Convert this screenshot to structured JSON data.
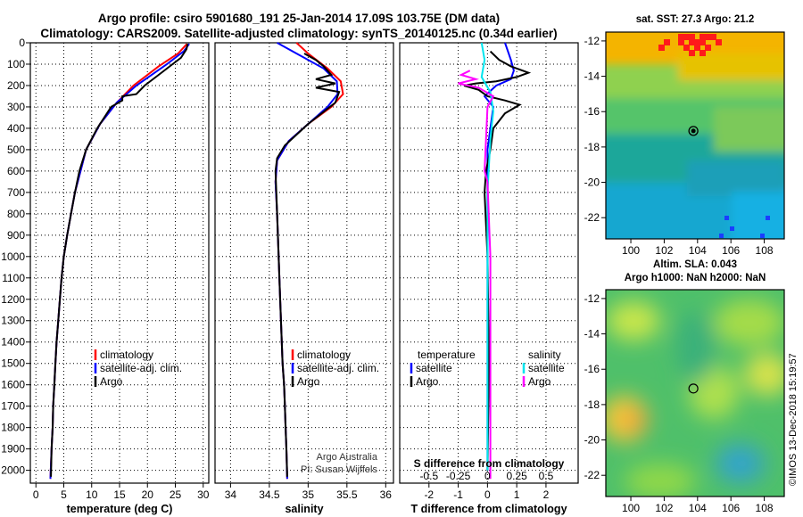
{
  "header": {
    "title_line1": "Argo profile: csiro 5901680_191 25-Jan-2014 17.09S 103.75E (DM data)",
    "title_line2": "Climatology: CARS2009. Satellite-adjusted climatology: synTS_20140125.nc (0.34d earlier)"
  },
  "colors": {
    "climatology": "#ff0000",
    "satellite": "#0000ff",
    "argo": "#000000",
    "sat_salinity": "#00e5ee",
    "argo_salinity": "#ff00ff"
  },
  "depth_axis": {
    "ticks": [
      0,
      100,
      200,
      300,
      400,
      500,
      600,
      700,
      800,
      900,
      1000,
      1100,
      1200,
      1300,
      1400,
      1500,
      1600,
      1700,
      1800,
      1900,
      2000
    ]
  },
  "chart_data": [
    {
      "type": "line",
      "xlabel": "temperature (deg C)",
      "xlim": [
        -1,
        31
      ],
      "ylim": [
        2060,
        0
      ],
      "xticks": [
        0,
        5,
        10,
        15,
        20,
        25,
        30
      ],
      "legend": {
        "items": [
          "climatology",
          "satellite-adj. clim.",
          "Argo"
        ]
      },
      "series": [
        {
          "name": "climatology",
          "color": "#ff0000",
          "x": [
            27.1,
            25.5,
            22.0,
            17.5,
            14.5,
            11.5,
            9.0,
            7.8,
            7.0,
            6.3,
            5.6,
            5.0,
            4.6,
            4.3,
            4.0,
            3.7,
            3.5,
            3.3,
            3.1,
            3.0,
            2.8,
            2.6
          ],
          "y": [
            5,
            50,
            110,
            200,
            280,
            380,
            500,
            620,
            700,
            800,
            900,
            1000,
            1100,
            1200,
            1300,
            1400,
            1500,
            1600,
            1700,
            1800,
            1900,
            2040
          ]
        },
        {
          "name": "satellite-adj. clim.",
          "color": "#0000ff",
          "x": [
            27.5,
            26.5,
            23.5,
            18.0,
            14.5,
            11.5,
            9.0,
            7.8,
            7.0,
            6.3,
            5.6,
            5.0,
            4.6,
            4.3,
            4.0,
            3.7,
            3.5,
            3.3,
            3.1,
            3.0,
            2.8,
            2.6
          ],
          "y": [
            5,
            40,
            100,
            200,
            280,
            380,
            500,
            620,
            700,
            800,
            900,
            1000,
            1100,
            1200,
            1300,
            1400,
            1500,
            1600,
            1700,
            1800,
            1900,
            2040
          ]
        },
        {
          "name": "Argo",
          "color": "#000000",
          "x": [
            27.2,
            27.0,
            26.0,
            24.5,
            22.0,
            19.5,
            18.0,
            15.5,
            15.5,
            13.5,
            11.0,
            9.0,
            7.8,
            7.0,
            6.3,
            5.6,
            5.0,
            4.6,
            4.3,
            4.0,
            3.7,
            3.5,
            3.3,
            3.1,
            3.0,
            2.8,
            2.7
          ],
          "y": [
            5,
            30,
            70,
            100,
            150,
            200,
            240,
            250,
            270,
            300,
            400,
            500,
            600,
            700,
            800,
            900,
            1000,
            1100,
            1200,
            1300,
            1400,
            1500,
            1600,
            1700,
            1800,
            1900,
            2030
          ]
        }
      ]
    },
    {
      "type": "line",
      "xlabel": "salinity",
      "xlim": [
        33.8,
        36.1
      ],
      "ylim": [
        2060,
        0
      ],
      "xticks": [
        34,
        34.5,
        35,
        35.5,
        36
      ],
      "legend": {
        "items": [
          "climatology",
          "satellite-adj. clim.",
          "Argo"
        ]
      },
      "annotation": [
        "Argo Australia",
        "PI: Susan Wijffels"
      ],
      "series": [
        {
          "name": "climatology",
          "color": "#ff0000",
          "x": [
            34.85,
            35.0,
            35.25,
            35.42,
            35.45,
            35.3,
            35.0,
            34.75,
            34.6,
            34.58,
            34.6,
            34.62,
            34.64,
            34.66,
            34.67,
            34.69,
            34.7,
            34.71,
            34.72,
            34.73
          ],
          "y": [
            0,
            50,
            120,
            180,
            240,
            300,
            380,
            460,
            550,
            650,
            800,
            1000,
            1200,
            1400,
            1500,
            1600,
            1700,
            1800,
            1900,
            2040
          ]
        },
        {
          "name": "satellite-adj. clim.",
          "color": "#0000ff",
          "x": [
            34.6,
            34.85,
            35.2,
            35.37,
            35.38,
            35.25,
            35.0,
            34.75,
            34.6,
            34.58,
            34.6,
            34.62,
            34.64,
            34.66,
            34.67,
            34.69,
            34.7,
            34.71,
            34.72,
            34.73
          ],
          "y": [
            0,
            50,
            120,
            180,
            240,
            300,
            380,
            460,
            550,
            650,
            800,
            1000,
            1200,
            1400,
            1500,
            1600,
            1700,
            1800,
            1900,
            2040
          ]
        },
        {
          "name": "Argo",
          "color": "#000000",
          "x": [
            34.95,
            35.1,
            35.2,
            35.3,
            35.1,
            35.35,
            35.1,
            35.4,
            35.35,
            35.0,
            34.85,
            34.7,
            34.6,
            34.58,
            34.6,
            34.62,
            34.64,
            34.66,
            34.67,
            34.69,
            34.7,
            34.71,
            34.72,
            34.73
          ],
          "y": [
            50,
            80,
            110,
            150,
            170,
            190,
            210,
            230,
            280,
            380,
            430,
            480,
            540,
            600,
            800,
            1000,
            1200,
            1400,
            1500,
            1600,
            1700,
            1800,
            1900,
            2030
          ]
        }
      ]
    },
    {
      "type": "line",
      "xlabel": "T difference from climatology",
      "xlim": [
        -3,
        3.1
      ],
      "ylim": [
        2060,
        0
      ],
      "xticks": [
        -2,
        -1,
        0,
        1,
        2
      ],
      "secondary_xlabel": "S difference from climatology",
      "secondary_xticks": [
        -0.5,
        -0.25,
        0,
        0.25,
        0.5
      ],
      "secondary_xtick_labels": [
        "-0.5",
        "-0.25",
        "0",
        "0.25",
        "0.5"
      ],
      "legend": {
        "temperature": {
          "title": "temperature",
          "items": [
            "satellite",
            "Argo"
          ]
        },
        "salinity": {
          "title": "salinity",
          "items": [
            "satellite",
            "Argo"
          ]
        }
      },
      "series": [
        {
          "name": "satellite",
          "color": "#0000ff",
          "x": [
            0.6,
            0.8,
            0.9,
            0.8,
            0.3,
            -0.1,
            0.2,
            0.1,
            0.0,
            0.0,
            0.0,
            0.0
          ],
          "y": [
            0,
            80,
            130,
            170,
            200,
            250,
            300,
            400,
            500,
            700,
            1000,
            2000
          ]
        },
        {
          "name": "Argo",
          "color": "#000000",
          "x": [
            0.1,
            0.4,
            0.8,
            1.2,
            1.4,
            1.0,
            0.3,
            -0.4,
            -0.8,
            -0.3,
            0.0,
            0.6,
            1.1,
            0.6,
            0.2,
            0.1,
            -0.05,
            -0.1,
            0.0,
            0.05,
            0.0
          ],
          "y": [
            40,
            80,
            110,
            130,
            140,
            160,
            180,
            190,
            200,
            220,
            250,
            270,
            290,
            330,
            400,
            500,
            600,
            700,
            1000,
            1500,
            2000
          ]
        },
        {
          "name": "salinity satellite",
          "color": "#00e5ee",
          "x": [
            -0.2,
            -0.1,
            -0.2,
            0.1,
            0.2,
            0.1,
            0.0,
            0.0
          ],
          "y": [
            0,
            80,
            160,
            230,
            320,
            450,
            700,
            2000
          ]
        },
        {
          "name": "salinity Argo",
          "color": "#ff00ff",
          "x": [
            -0.6,
            -0.9,
            -0.4,
            -1.0,
            -0.3,
            0.2,
            0.0,
            -0.1,
            0.0,
            0.1,
            0.1,
            0.1,
            0.1
          ],
          "y": [
            130,
            150,
            170,
            190,
            210,
            250,
            300,
            600,
            650,
            1000,
            1500,
            2000,
            2040
          ]
        }
      ]
    },
    {
      "type": "heatmap",
      "title": "sat. SST: 27.3 Argo: 21.2",
      "xlim": [
        98.5,
        109.2
      ],
      "ylim": [
        -23.2,
        -11.5
      ],
      "xticks": [
        100,
        102,
        104,
        106,
        108
      ],
      "yticks": [
        -12,
        -14,
        -16,
        -18,
        -20,
        -22
      ],
      "marker": {
        "lon": 103.75,
        "lat": -17.09
      }
    },
    {
      "type": "heatmap",
      "title_line1": "Altim. SLA: 0.043",
      "title_line2": "Argo h1000: NaN h2000: NaN",
      "xlim": [
        98.5,
        109.2
      ],
      "ylim": [
        -23.2,
        -11.5
      ],
      "xticks": [
        100,
        102,
        104,
        106,
        108
      ],
      "yticks": [
        -12,
        -14,
        -16,
        -18,
        -20,
        -22
      ],
      "marker": {
        "lon": 103.75,
        "lat": -17.09
      }
    }
  ],
  "footer": {
    "credit": "©IMOS 13-Dec-2018 15:19:57"
  }
}
